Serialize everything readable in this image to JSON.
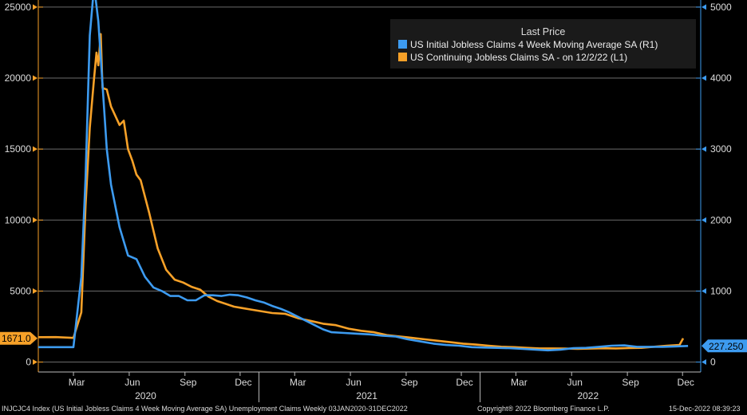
{
  "chart_data": {
    "type": "line",
    "title": "",
    "legend": {
      "title": "Last Price",
      "placement": "top-right"
    },
    "x_axis": {
      "month_labels": [
        "Mar",
        "Jun",
        "Sep",
        "Dec",
        "Mar",
        "Jun",
        "Sep",
        "Dec",
        "Mar",
        "Jun",
        "Sep",
        "Dec"
      ],
      "year_labels": [
        "2020",
        "2021",
        "2022"
      ],
      "range": [
        "2020-01-03",
        "2022-12-31"
      ]
    },
    "y_left": {
      "ticks": [
        "0",
        "5000",
        "10000",
        "15000",
        "20000",
        "25000"
      ],
      "range": [
        -700,
        25500
      ],
      "color": "#f7a128"
    },
    "y_right": {
      "ticks": [
        "0",
        "1000",
        "2000",
        "3000",
        "4000",
        "5000"
      ],
      "range": [
        -140,
        5100
      ],
      "color": "#3d9bf0"
    },
    "grid": true,
    "series": [
      {
        "name": "US Initial Jobless Claims 4 Week Moving Average SA  (R1)",
        "axis": "right",
        "color": "#3d9bf0",
        "last_value_label": "227.250",
        "x": [
          "2020-01-03",
          "2020-02-01",
          "2020-03-01",
          "2020-03-14",
          "2020-03-21",
          "2020-03-28",
          "2020-04-04",
          "2020-04-11",
          "2020-04-18",
          "2020-04-25",
          "2020-05-02",
          "2020-05-16",
          "2020-05-30",
          "2020-06-13",
          "2020-06-27",
          "2020-07-11",
          "2020-07-25",
          "2020-08-08",
          "2020-08-22",
          "2020-09-05",
          "2020-09-19",
          "2020-10-03",
          "2020-10-17",
          "2020-10-31",
          "2020-11-14",
          "2020-11-28",
          "2020-12-12",
          "2020-12-26",
          "2021-01-09",
          "2021-01-23",
          "2021-02-06",
          "2021-02-20",
          "2021-03-06",
          "2021-03-20",
          "2021-04-03",
          "2021-04-17",
          "2021-05-01",
          "2021-05-22",
          "2021-06-12",
          "2021-07-03",
          "2021-07-24",
          "2021-08-14",
          "2021-09-04",
          "2021-09-25",
          "2021-10-16",
          "2021-11-06",
          "2021-11-27",
          "2021-12-18",
          "2022-01-08",
          "2022-01-29",
          "2022-02-19",
          "2022-03-12",
          "2022-04-02",
          "2022-04-23",
          "2022-05-14",
          "2022-06-04",
          "2022-06-25",
          "2022-07-16",
          "2022-08-06",
          "2022-08-27",
          "2022-09-17",
          "2022-10-08",
          "2022-10-29",
          "2022-11-19",
          "2022-12-10"
        ],
        "values": [
          210,
          210,
          210,
          1200,
          2600,
          4600,
          5300,
          4800,
          3900,
          3000,
          2500,
          1900,
          1500,
          1450,
          1200,
          1050,
          1000,
          930,
          930,
          870,
          870,
          940,
          940,
          930,
          950,
          940,
          910,
          870,
          840,
          790,
          750,
          700,
          640,
          580,
          520,
          460,
          420,
          410,
          400,
          390,
          370,
          360,
          320,
          290,
          260,
          240,
          230,
          210,
          205,
          200,
          195,
          185,
          175,
          165,
          175,
          195,
          200,
          215,
          230,
          235,
          215,
          215,
          215,
          220,
          227.25
        ]
      },
      {
        "name": "US Continuing Jobless Claims SA -  on 12/2/22  (L1)",
        "axis": "left",
        "color": "#f7a128",
        "last_value_label": "1671.0",
        "x": [
          "2020-01-03",
          "2020-02-01",
          "2020-03-01",
          "2020-03-14",
          "2020-03-21",
          "2020-03-28",
          "2020-04-04",
          "2020-04-08",
          "2020-04-11",
          "2020-04-15",
          "2020-04-18",
          "2020-04-25",
          "2020-05-02",
          "2020-05-16",
          "2020-05-23",
          "2020-05-30",
          "2020-06-06",
          "2020-06-13",
          "2020-06-20",
          "2020-07-04",
          "2020-07-18",
          "2020-08-01",
          "2020-08-15",
          "2020-08-29",
          "2020-09-12",
          "2020-09-26",
          "2020-10-10",
          "2020-10-24",
          "2020-11-07",
          "2020-11-21",
          "2020-12-05",
          "2020-12-19",
          "2021-01-02",
          "2021-01-23",
          "2021-02-13",
          "2021-03-06",
          "2021-03-27",
          "2021-04-17",
          "2021-05-08",
          "2021-05-29",
          "2021-06-19",
          "2021-07-10",
          "2021-07-31",
          "2021-08-21",
          "2021-09-11",
          "2021-10-02",
          "2021-10-23",
          "2021-11-13",
          "2021-12-04",
          "2021-12-25",
          "2022-01-15",
          "2022-02-05",
          "2022-02-26",
          "2022-03-19",
          "2022-04-09",
          "2022-04-30",
          "2022-05-21",
          "2022-06-11",
          "2022-07-02",
          "2022-07-23",
          "2022-08-13",
          "2022-09-03",
          "2022-09-24",
          "2022-10-15",
          "2022-11-05",
          "2022-11-26",
          "2022-12-02"
        ],
        "values": [
          1750,
          1760,
          1700,
          3500,
          11000,
          16500,
          20000,
          21800,
          20900,
          23100,
          19300,
          19200,
          18000,
          16700,
          17000,
          15000,
          14200,
          13200,
          12800,
          10500,
          8000,
          6500,
          5800,
          5600,
          5300,
          5100,
          4600,
          4300,
          4100,
          3900,
          3800,
          3700,
          3600,
          3450,
          3400,
          3100,
          2900,
          2700,
          2600,
          2350,
          2200,
          2100,
          1900,
          1800,
          1700,
          1600,
          1500,
          1400,
          1300,
          1230,
          1150,
          1080,
          1050,
          1000,
          960,
          960,
          950,
          930,
          950,
          970,
          960,
          990,
          1000,
          1080,
          1150,
          1200,
          1671
        ]
      }
    ],
    "tags": {
      "left_last": "1671.0",
      "right_last": "227.250"
    }
  },
  "footer": {
    "left": "INJCJC4 Index (US Initial Jobless Claims 4 Week Moving Average SA) Unemployment Claims  Weekly 03JAN2020-31DEC2022",
    "center": "Copyright® 2022 Bloomberg Finance L.P.",
    "right": "15-Dec-2022 08:39:23"
  }
}
